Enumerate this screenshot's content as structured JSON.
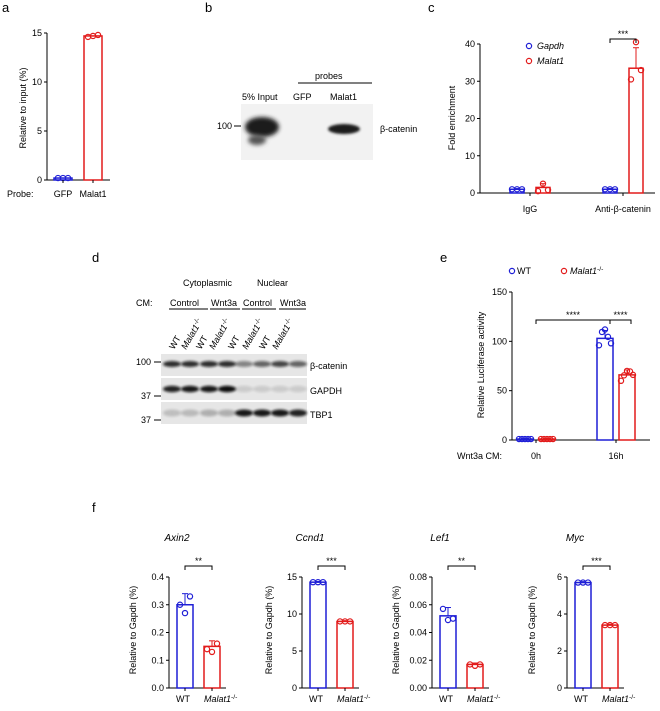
{
  "panels": {
    "a": {
      "letter": "a"
    },
    "b": {
      "letter": "b",
      "input_label": "5% Input",
      "probes_label": "probes",
      "lane_gfp": "GFP",
      "lane_malat1": "Malat1",
      "marker": "100",
      "protein": "β-catenin"
    },
    "c": {
      "letter": "c"
    },
    "d": {
      "letter": "d",
      "cyto": "Cytoplasmic",
      "nuclear": "Nuclear",
      "cm": "CM:",
      "control": "Control",
      "wnt3a": "Wnt3a",
      "lane_labels": [
        "WT",
        "Malat1-/-",
        "WT",
        "Malat1-/-",
        "WT",
        "Malat1-/-",
        "WT",
        "Malat1-/-"
      ],
      "markers": [
        "100",
        "37",
        "37"
      ],
      "proteins": [
        "β-catenin",
        "GAPDH",
        "TBP1"
      ]
    },
    "e": {
      "letter": "e",
      "legend_wt": "WT",
      "legend_ko": "Malat1-/-",
      "wnt_label": "Wnt3a CM:",
      "time_0": "0h",
      "time_16": "16h"
    },
    "f": {
      "letter": "f",
      "wt": "WT",
      "ko": "Malat1-/-"
    }
  },
  "chart_data": [
    {
      "id": "a",
      "type": "bar",
      "title": "",
      "ylabel": "Relative  to input (%)",
      "xlabel_prefix": "Probe:",
      "categories": [
        "GFP",
        "Malat1"
      ],
      "ylim": [
        0,
        15
      ],
      "yticks": [
        0,
        5,
        10,
        15
      ],
      "values": [
        0.2,
        14.7
      ],
      "points": [
        [
          0.2,
          0.2,
          0.2
        ],
        [
          14.6,
          14.7,
          14.8
        ]
      ],
      "colors": [
        "#1f1fd6",
        "#e21b1b"
      ]
    },
    {
      "id": "c",
      "type": "bar",
      "title": "",
      "ylabel": "Fold enrichment",
      "categories": [
        "IgG",
        "Anti-β-catenin"
      ],
      "ylim": [
        0,
        40
      ],
      "yticks": [
        0,
        10,
        20,
        30,
        40
      ],
      "series": [
        {
          "name": "Gapdh",
          "values": [
            1,
            1
          ],
          "points": [
            [
              1,
              1,
              1
            ],
            [
              1,
              1,
              1
            ]
          ],
          "errors": [
            0.2,
            0.2
          ]
        },
        {
          "name": "Malat1",
          "values": [
            1.5,
            33.5
          ],
          "points": [
            [
              0.5,
              2.5,
              0.8
            ],
            [
              30.5,
              40.5,
              33
            ]
          ],
          "errors": [
            1,
            5.5
          ]
        }
      ],
      "significance": "***",
      "legend": "top-left"
    },
    {
      "id": "e",
      "type": "bar",
      "title": "",
      "ylabel": "Relative Luciferase activity",
      "categories": [
        "0h",
        "16h"
      ],
      "ylim": [
        0,
        150
      ],
      "yticks": [
        0,
        50,
        100,
        150
      ],
      "series": [
        {
          "name": "WT",
          "values": [
            1,
            103
          ],
          "points": [
            [
              1,
              1,
              1,
              1,
              1
            ],
            [
              96,
              108,
              112,
              103,
              98
            ]
          ],
          "errors": [
            0.5,
            8
          ]
        },
        {
          "name": "Malat1-/-",
          "values": [
            1,
            66
          ],
          "points": [
            [
              1,
              1,
              1,
              1,
              1
            ],
            [
              60,
              64,
              70,
              68,
              66
            ]
          ],
          "errors": [
            0.5,
            5
          ]
        }
      ],
      "significance": [
        "****",
        "****"
      ],
      "legend": "top"
    },
    {
      "id": "f1",
      "type": "bar",
      "title": "Axin2",
      "ylabel": "Relative  to Gapdh (%)",
      "categories": [
        "WT",
        "Malat1-/-"
      ],
      "ylim": [
        0,
        0.4
      ],
      "yticks": [
        0.0,
        0.1,
        0.2,
        0.3,
        0.4
      ],
      "tick_labels": [
        "0.0",
        "0.1",
        "0.2",
        "0.3",
        "0.4"
      ],
      "values": [
        0.3,
        0.15
      ],
      "points": [
        [
          0.3,
          0.27,
          0.33
        ],
        [
          0.14,
          0.13,
          0.16
        ]
      ],
      "errors": [
        0.04,
        0.02
      ],
      "significance": "**"
    },
    {
      "id": "f2",
      "type": "bar",
      "title": "Ccnd1",
      "ylabel": "Relative  to Gapdh (%)",
      "categories": [
        "WT",
        "Malat1-/-"
      ],
      "ylim": [
        0,
        15
      ],
      "yticks": [
        0,
        5,
        10,
        15
      ],
      "tick_labels": [
        "0",
        "5",
        "10",
        "15"
      ],
      "values": [
        14.3,
        9
      ],
      "points": [
        [
          14.3,
          14.3,
          14.3
        ],
        [
          9,
          9,
          9
        ]
      ],
      "errors": [
        0.1,
        0.1
      ],
      "significance": "***"
    },
    {
      "id": "f3",
      "type": "bar",
      "title": "Lef1",
      "ylabel": "Relative  to Gapdh (%)",
      "categories": [
        "WT",
        "Malat1-/-"
      ],
      "ylim": [
        0,
        0.08
      ],
      "yticks": [
        0.0,
        0.02,
        0.04,
        0.06,
        0.08
      ],
      "tick_labels": [
        "0.00",
        "0.02",
        "0.04",
        "0.06",
        "0.08"
      ],
      "values": [
        0.052,
        0.017
      ],
      "points": [
        [
          0.057,
          0.049,
          0.05
        ],
        [
          0.017,
          0.016,
          0.017
        ]
      ],
      "errors": [
        0.006,
        0.001
      ],
      "significance": "**"
    },
    {
      "id": "f4",
      "type": "bar",
      "title": "Myc",
      "ylabel": "Relative  to Gapdh (%)",
      "categories": [
        "WT",
        "Malat1-/-"
      ],
      "ylim": [
        0,
        6
      ],
      "yticks": [
        0,
        2,
        4,
        6
      ],
      "tick_labels": [
        "0",
        "2",
        "4",
        "6"
      ],
      "values": [
        5.7,
        3.4
      ],
      "points": [
        [
          5.7,
          5.7,
          5.7
        ],
        [
          3.4,
          3.4,
          3.4
        ]
      ],
      "errors": [
        0.05,
        0.05
      ],
      "significance": "***"
    }
  ]
}
